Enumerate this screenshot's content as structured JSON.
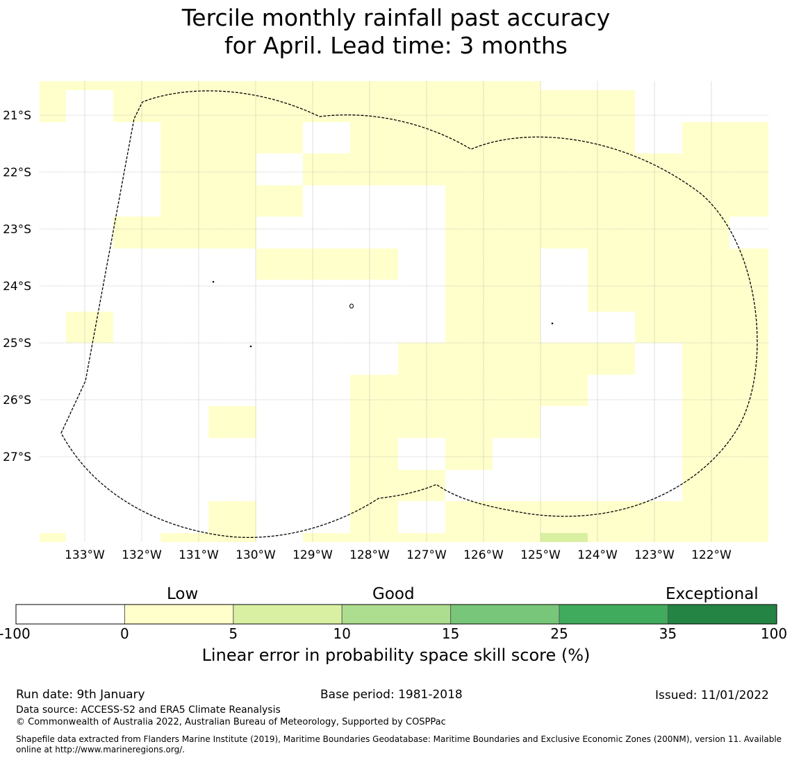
{
  "title": {
    "line1": "Tercile monthly rainfall past accuracy",
    "line2": "for April. Lead time: 3 months"
  },
  "map": {
    "lon_labels": [
      "133°W",
      "132°W",
      "131°W",
      "130°W",
      "129°W",
      "128°W",
      "127°W",
      "126°W",
      "125°W",
      "124°W",
      "123°W",
      "122°W"
    ],
    "lat_labels": [
      "21°S",
      "22°S",
      "23°S",
      "24°S",
      "25°S",
      "26°S",
      "27°S"
    ],
    "colors": {
      "white": "#ffffff",
      "low": "#ffffcc",
      "good5": "#d9f0a3"
    },
    "boundary": "Exclusive Economic Zone (dashed)"
  },
  "colorbar": {
    "categories": [
      "Low",
      "Good",
      "Exceptional"
    ],
    "ticks": [
      "-100",
      "0",
      "5",
      "10",
      "15",
      "25",
      "35",
      "100"
    ],
    "colors": [
      "#ffffff",
      "#ffffcc",
      "#d9f0a3",
      "#addd8e",
      "#78c679",
      "#41ab5d",
      "#238443"
    ],
    "label": "Linear error in probability space skill score (%)"
  },
  "footer": {
    "run_date": "Run date: 9th January",
    "base_period": "Base period: 1981-2018",
    "issued": "Issued: 11/01/2022",
    "data_source": "Data source: ACCESS-S2 and ERA5 Climate Reanalysis",
    "copyright": "© Commonwealth of Australia 2022, Australian Bureau of Meteorology, Supported by COSPPac",
    "shapefile_line1": "Shapefile data extracted from Flanders Marine Institute (2019), Maritime Boundaries Geodatabase: Maritime Boundaries and Exclusive Economic Zones (200NM), version 11. Available",
    "shapefile_line2": "online at http://www.marineregions.org/."
  }
}
